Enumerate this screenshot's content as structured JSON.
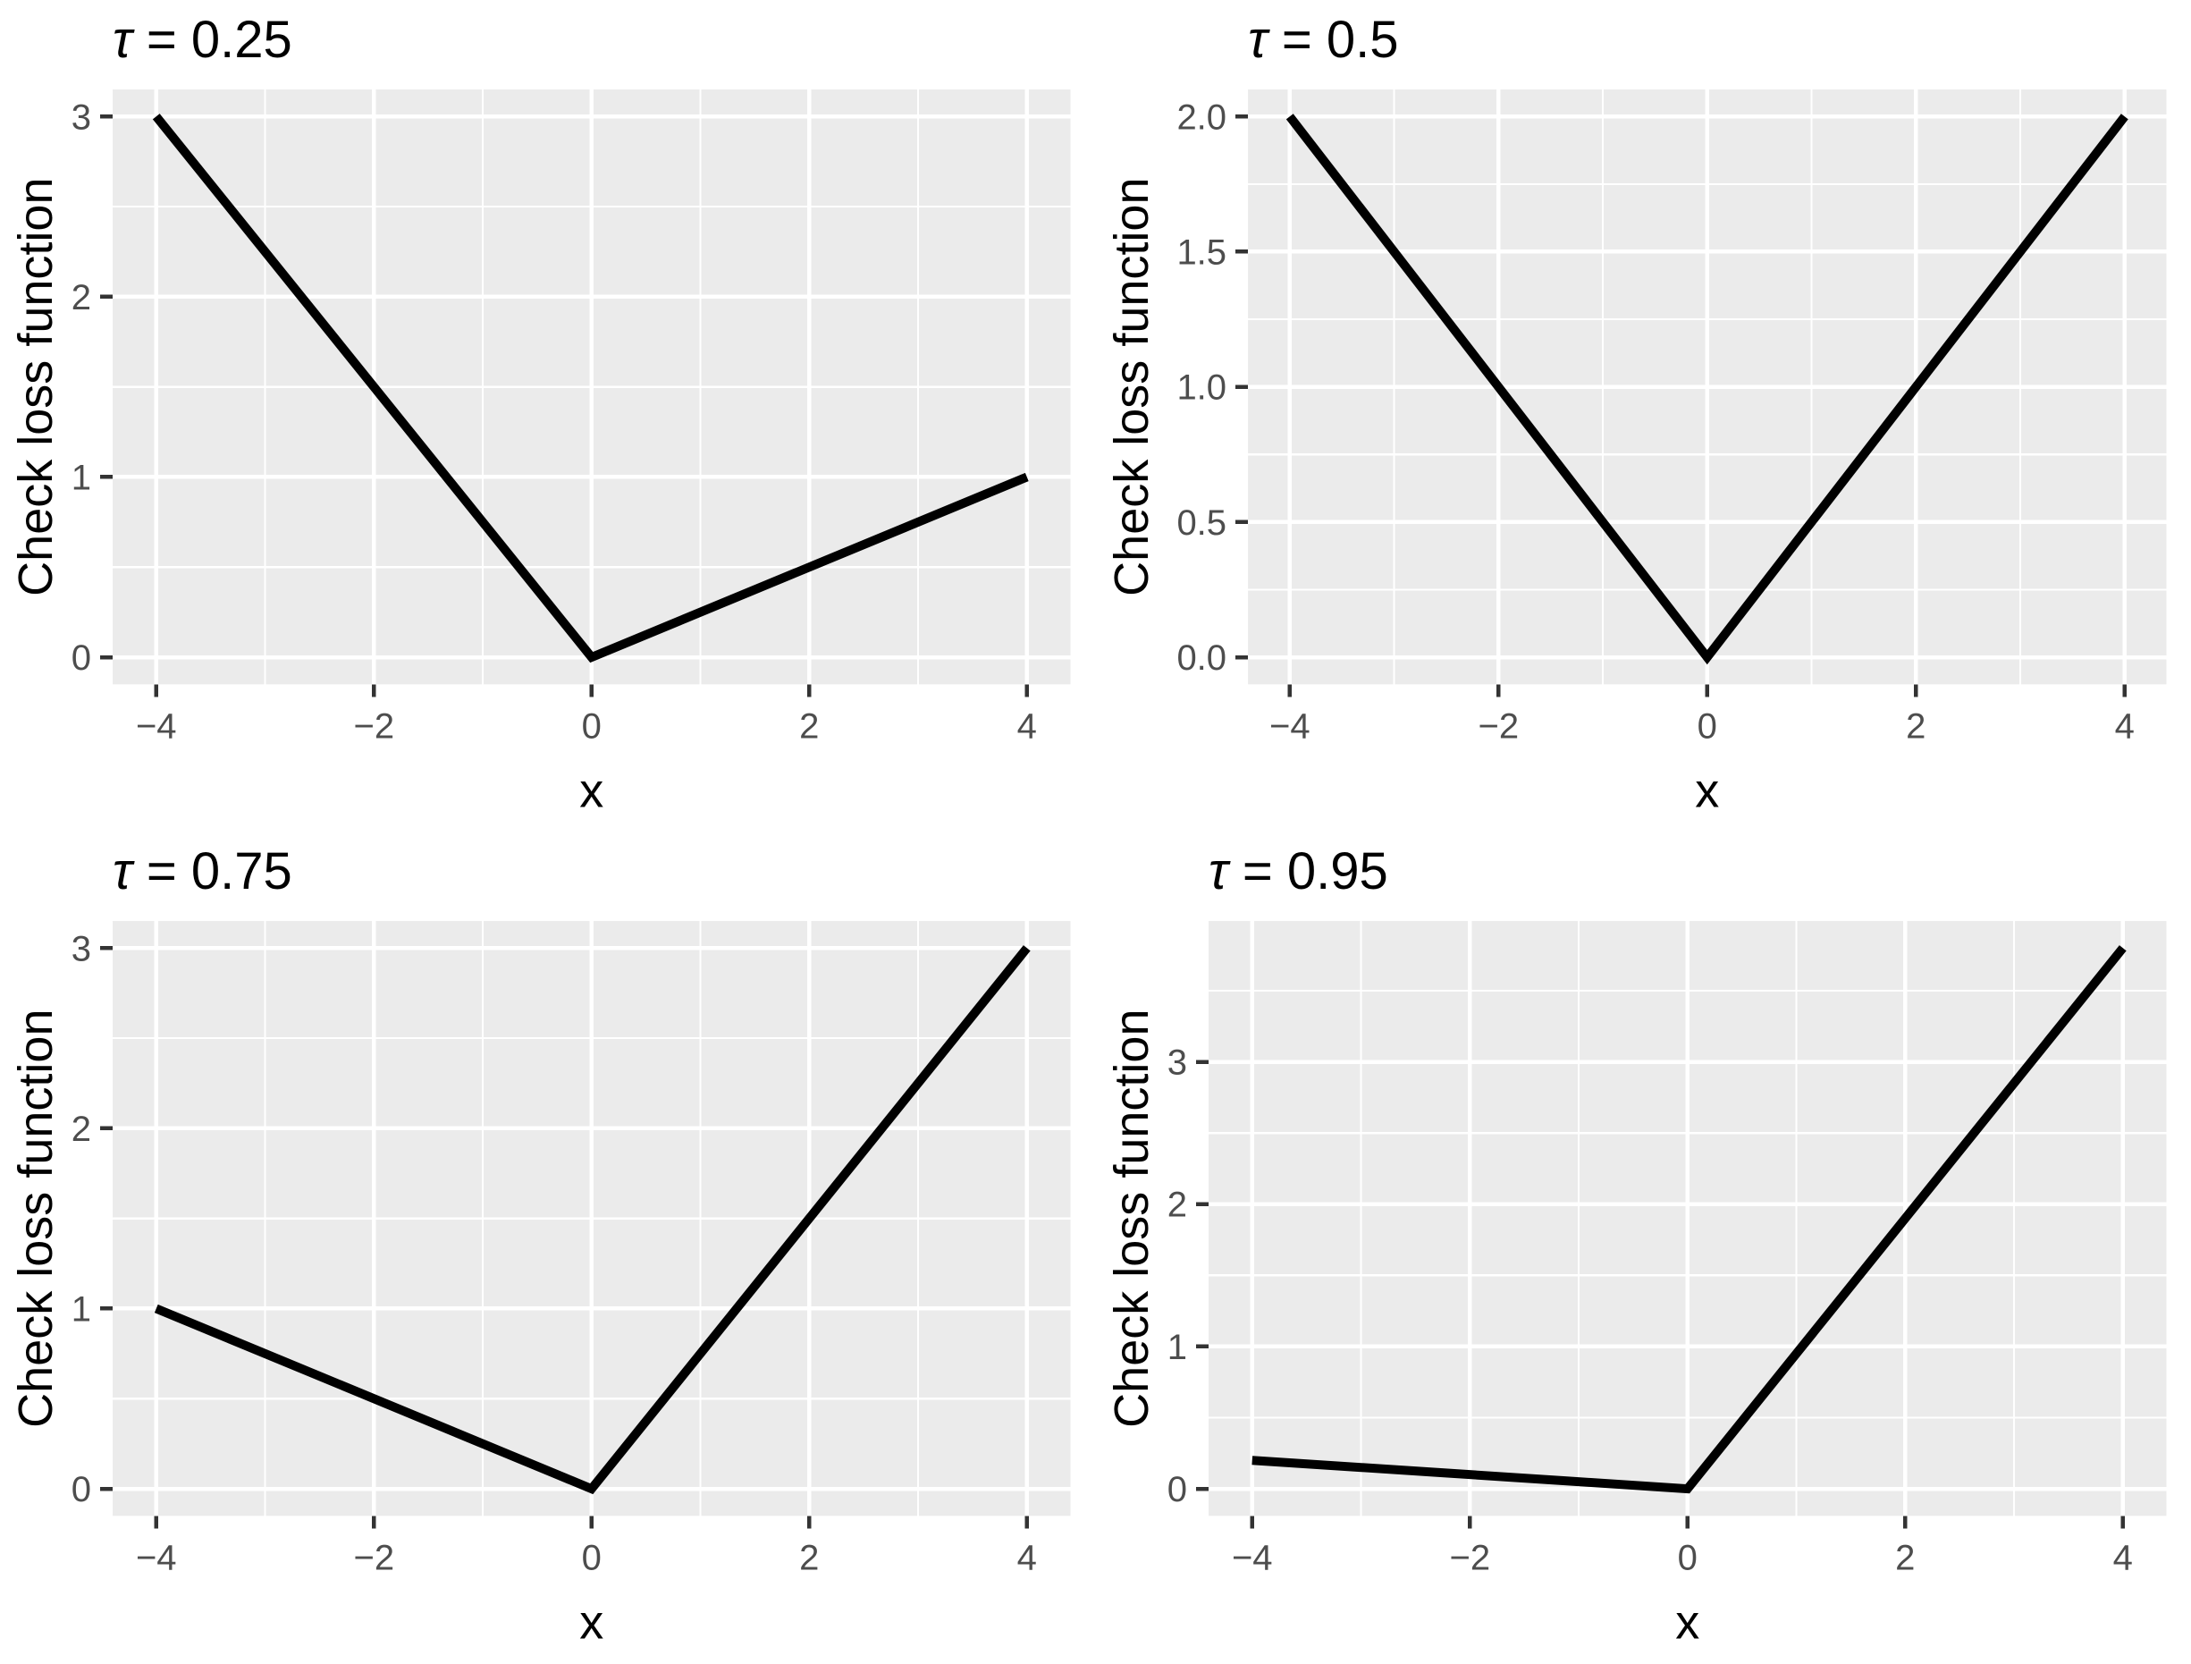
{
  "page": {
    "background": "#FFFFFF",
    "figure_description": "Check loss function for four quantile levels"
  },
  "style": {
    "panel_bg": "#EBEBEB",
    "grid_color": "#FFFFFF",
    "line_color": "#000000",
    "tick_mark_color": "#333333",
    "tick_label_color": "#4D4D4D",
    "title_color": "#000000",
    "axis_title_color": "#000000"
  },
  "chart_data": [
    {
      "type": "line",
      "title": "τ = 0.25",
      "tau": 0.25,
      "xlabel": "x",
      "ylabel": "Check loss function",
      "series": [
        {
          "name": "check loss",
          "x": [
            -4,
            0,
            4
          ],
          "y": [
            3,
            0,
            1
          ]
        }
      ],
      "xlim": [
        -4.4,
        4.4
      ],
      "ylim": [
        -0.15,
        3.15
      ],
      "xticks": {
        "values": [
          -4,
          -2,
          0,
          2,
          4
        ],
        "labels": [
          "−4",
          "−2",
          "0",
          "2",
          "4"
        ]
      },
      "yticks": {
        "values": [
          0,
          1,
          2,
          3
        ],
        "labels": [
          "0",
          "1",
          "2",
          "3"
        ]
      },
      "x_minor": [
        -3,
        -1,
        1,
        3
      ],
      "y_minor": [
        0.5,
        1.5,
        2.5
      ],
      "grid": "major+minor",
      "legend": "none"
    },
    {
      "type": "line",
      "title": "τ = 0.5",
      "tau": 0.5,
      "xlabel": "x",
      "ylabel": "Check loss function",
      "series": [
        {
          "name": "check loss",
          "x": [
            -4,
            0,
            4
          ],
          "y": [
            2,
            0,
            2
          ]
        }
      ],
      "xlim": [
        -4.4,
        4.4
      ],
      "ylim": [
        -0.1,
        2.1
      ],
      "xticks": {
        "values": [
          -4,
          -2,
          0,
          2,
          4
        ],
        "labels": [
          "−4",
          "−2",
          "0",
          "2",
          "4"
        ]
      },
      "yticks": {
        "values": [
          0,
          0.5,
          1,
          1.5,
          2
        ],
        "labels": [
          "0.0",
          "0.5",
          "1.0",
          "1.5",
          "2.0"
        ]
      },
      "x_minor": [
        -3,
        -1,
        1,
        3
      ],
      "y_minor": [
        0.25,
        0.75,
        1.25,
        1.75
      ],
      "grid": "major+minor",
      "legend": "none"
    },
    {
      "type": "line",
      "title": "τ = 0.75",
      "tau": 0.75,
      "xlabel": "x",
      "ylabel": "Check loss function",
      "series": [
        {
          "name": "check loss",
          "x": [
            -4,
            0,
            4
          ],
          "y": [
            1,
            0,
            3
          ]
        }
      ],
      "xlim": [
        -4.4,
        4.4
      ],
      "ylim": [
        -0.15,
        3.15
      ],
      "xticks": {
        "values": [
          -4,
          -2,
          0,
          2,
          4
        ],
        "labels": [
          "−4",
          "−2",
          "0",
          "2",
          "4"
        ]
      },
      "yticks": {
        "values": [
          0,
          1,
          2,
          3
        ],
        "labels": [
          "0",
          "1",
          "2",
          "3"
        ]
      },
      "x_minor": [
        -3,
        -1,
        1,
        3
      ],
      "y_minor": [
        0.5,
        1.5,
        2.5
      ],
      "grid": "major+minor",
      "legend": "none"
    },
    {
      "type": "line",
      "title": "τ = 0.95",
      "tau": 0.95,
      "xlabel": "x",
      "ylabel": "Check loss function",
      "series": [
        {
          "name": "check loss",
          "x": [
            -4,
            0,
            4
          ],
          "y": [
            0.2,
            0,
            3.8
          ]
        }
      ],
      "xlim": [
        -4.4,
        4.4
      ],
      "ylim": [
        -0.19,
        3.99
      ],
      "xticks": {
        "values": [
          -4,
          -2,
          0,
          2,
          4
        ],
        "labels": [
          "−4",
          "−2",
          "0",
          "2",
          "4"
        ]
      },
      "yticks": {
        "values": [
          0,
          1,
          2,
          3
        ],
        "labels": [
          "0",
          "1",
          "2",
          "3"
        ]
      },
      "x_minor": [
        -3,
        -1,
        1,
        3
      ],
      "y_minor": [
        0.5,
        1.5,
        2.5,
        3.5
      ],
      "grid": "major+minor",
      "legend": "none"
    }
  ]
}
